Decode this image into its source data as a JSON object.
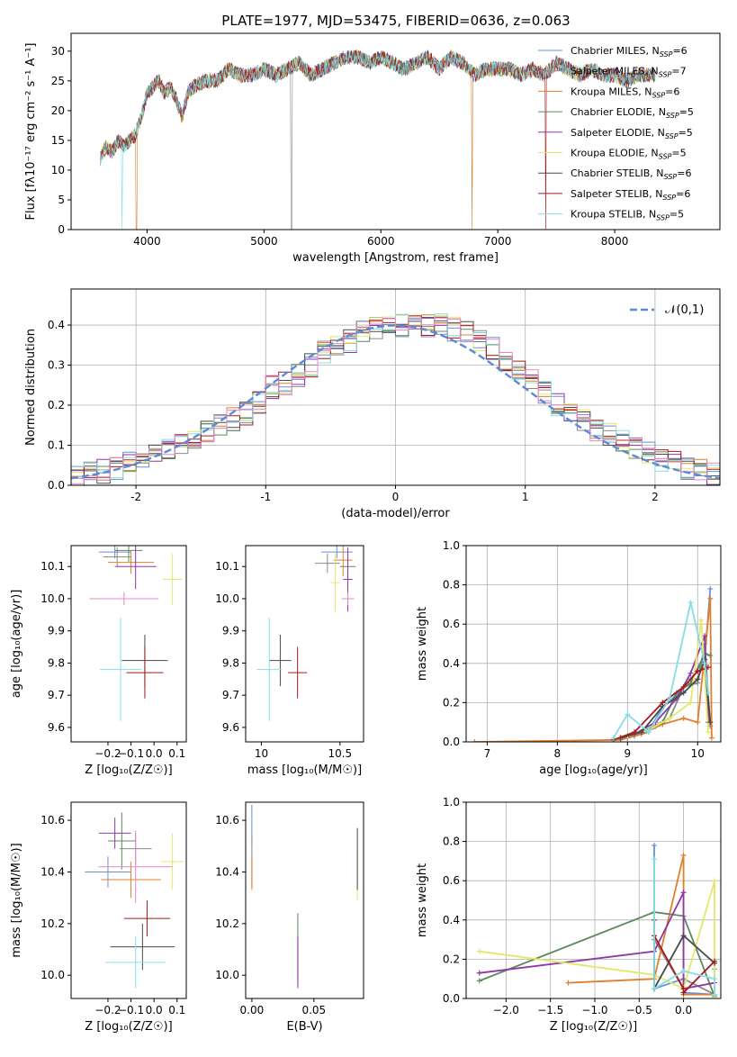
{
  "title": "PLATE=1977, MJD=53475, FIBERID=0636, z=0.063",
  "colors": {
    "series": [
      "#6a8ed8",
      "#8a8a8a",
      "#e07f2c",
      "#5c8a5c",
      "#9036a8",
      "#e3e868",
      "#4a4a4a",
      "#a8191c",
      "#86dde6"
    ],
    "pink": "#e587c4",
    "gaussian": "#5b8ad9"
  },
  "chart_data": [
    {
      "type": "line",
      "name": "spectrum",
      "title": "PLATE=1977, MJD=53475, FIBERID=0636, z=0.063",
      "xlabel": "wavelength [Angstrom, rest frame]",
      "ylabel": "Flux [fλ10⁻¹⁷ erg cm⁻² s⁻¹ A⁻¹]",
      "xlim": [
        3350,
        8900
      ],
      "ylim": [
        0,
        33
      ],
      "xticks": [
        4000,
        5000,
        6000,
        7000,
        8000
      ],
      "yticks": [
        0,
        5,
        10,
        15,
        20,
        25,
        30
      ],
      "legend_position": "top-right",
      "legend": [
        {
          "label": "Chabrier MILES, N",
          "sub": "SSP",
          "eq": "=6"
        },
        {
          "label": "Salpeter MILES, N",
          "sub": "SSP",
          "eq": "=7"
        },
        {
          "label": "Kroupa MILES, N",
          "sub": "SSP",
          "eq": "=6"
        },
        {
          "label": "Chabrier ELODIE, N",
          "sub": "SSP",
          "eq": "=5"
        },
        {
          "label": "Salpeter ELODIE, N",
          "sub": "SSP",
          "eq": "=5"
        },
        {
          "label": "Kroupa ELODIE, N",
          "sub": "SSP",
          "eq": "=5"
        },
        {
          "label": "Chabrier STELIB, N",
          "sub": "SSP",
          "eq": "=6"
        },
        {
          "label": "Salpeter STELIB, N",
          "sub": "SSP",
          "eq": "=6"
        },
        {
          "label": "Kroupa STELIB, N",
          "sub": "SSP",
          "eq": "=5"
        }
      ],
      "x": [
        3600,
        3650,
        3700,
        3750,
        3800,
        3850,
        3900,
        3950,
        4000,
        4050,
        4100,
        4150,
        4200,
        4250,
        4300,
        4350,
        4400,
        4500,
        4600,
        4700,
        4800,
        4900,
        5000,
        5100,
        5200,
        5300,
        5400,
        5500,
        5600,
        5700,
        5800,
        5900,
        6000,
        6100,
        6200,
        6300,
        6400,
        6500,
        6600,
        6700,
        6800,
        6900,
        7000,
        7100,
        7200,
        7300,
        7400,
        7500,
        7600,
        7700,
        7800,
        7900,
        8000,
        8100,
        8200,
        8300
      ],
      "y": [
        12,
        14,
        13,
        15,
        14,
        15,
        16,
        19,
        23,
        24,
        25,
        23,
        24,
        22,
        19,
        23,
        24,
        25,
        25,
        27,
        26,
        26,
        27,
        26,
        27,
        28,
        26,
        27,
        28,
        29,
        29,
        28,
        29,
        28,
        27,
        28,
        29,
        27,
        29,
        28,
        26,
        27,
        27,
        27,
        26,
        27,
        26,
        28,
        27,
        26,
        27,
        26,
        26,
        25,
        26,
        26
      ]
    },
    {
      "type": "histogram",
      "name": "residual-distribution",
      "xlabel": "(data-model)/error",
      "ylabel": "Normed distribution",
      "xlim": [
        -2.5,
        2.5
      ],
      "ylim": [
        0,
        0.49
      ],
      "xticks": [
        -2,
        -1,
        0,
        1,
        2
      ],
      "yticks": [
        0.0,
        0.1,
        0.2,
        0.3,
        0.4
      ],
      "grid": true,
      "legend_position": "top-right",
      "legend": [
        "𝒩(0,1)"
      ],
      "bin_edges": [
        -2.5,
        -2.4,
        -2.3,
        -2.2,
        -2.1,
        -2.0,
        -1.9,
        -1.8,
        -1.7,
        -1.6,
        -1.5,
        -1.4,
        -1.3,
        -1.2,
        -1.1,
        -1.0,
        -0.9,
        -0.8,
        -0.7,
        -0.6,
        -0.5,
        -0.4,
        -0.3,
        -0.2,
        -0.1,
        0.0,
        0.1,
        0.2,
        0.3,
        0.4,
        0.5,
        0.6,
        0.7,
        0.8,
        0.9,
        1.0,
        1.1,
        1.2,
        1.3,
        1.4,
        1.5,
        1.6,
        1.7,
        1.8,
        1.9,
        2.0,
        2.1,
        2.2,
        2.3,
        2.4,
        2.5
      ],
      "density": [
        0.02,
        0.03,
        0.035,
        0.04,
        0.055,
        0.065,
        0.075,
        0.085,
        0.1,
        0.11,
        0.13,
        0.15,
        0.165,
        0.18,
        0.205,
        0.245,
        0.255,
        0.275,
        0.3,
        0.33,
        0.35,
        0.36,
        0.38,
        0.39,
        0.41,
        0.4,
        0.41,
        0.4,
        0.4,
        0.39,
        0.38,
        0.36,
        0.34,
        0.31,
        0.29,
        0.26,
        0.23,
        0.2,
        0.185,
        0.165,
        0.14,
        0.125,
        0.11,
        0.09,
        0.08,
        0.065,
        0.055,
        0.045,
        0.035,
        0.03
      ]
    },
    {
      "type": "errorbar",
      "name": "age-vs-Z",
      "xlabel": "Z [log₁₀(Z/Z☉)]",
      "ylabel": "age  [log₁₀(age/yr)]",
      "xlim": [
        -0.36,
        0.14
      ],
      "ylim": [
        9.555,
        10.165
      ],
      "xticks": [
        -0.2,
        -0.1,
        0.0,
        0.1
      ],
      "xticklabels": [
        "−0.2",
        "−0.1",
        "0.0",
        "0.1"
      ],
      "yticks": [
        9.6,
        9.7,
        9.8,
        9.9,
        10.0,
        10.1
      ],
      "points": [
        {
          "x": -0.17,
          "xerr": 0.07,
          "y": 10.145,
          "yerr": 0.02
        },
        {
          "x": -0.16,
          "xerr": 0.06,
          "y": 10.13,
          "yerr": 0.03
        },
        {
          "x": -0.1,
          "xerr": 0.1,
          "y": 10.113,
          "yerr": 0.035
        },
        {
          "x": -0.11,
          "xerr": 0.06,
          "y": 10.15,
          "yerr": 0.035
        },
        {
          "x": -0.08,
          "xerr": 0.09,
          "y": 10.1,
          "yerr": 0.07
        },
        {
          "x": 0.08,
          "xerr": 0.04,
          "y": 10.06,
          "yerr": 0.08
        },
        {
          "x": -0.04,
          "xerr": 0.1,
          "y": 9.808,
          "yerr": 0.08
        },
        {
          "x": -0.04,
          "xerr": 0.08,
          "y": 9.77,
          "yerr": 0.08
        },
        {
          "x": -0.145,
          "xerr": 0.09,
          "y": 9.78,
          "yerr": 0.16
        },
        {
          "x": -0.13,
          "xerr": 0.15,
          "y": 10.0,
          "yerr": 0.02
        }
      ]
    },
    {
      "type": "errorbar",
      "name": "age-vs-mass",
      "xlabel": "mass [log₁₀(M/M☉)]",
      "ylabel": "",
      "xlim": [
        9.9,
        10.65
      ],
      "ylim": [
        9.555,
        10.165
      ],
      "xticks": [
        10.0,
        10.5
      ],
      "yticks": [
        9.6,
        9.7,
        9.8,
        9.9,
        10.0,
        10.1
      ],
      "points": [
        {
          "x": 10.48,
          "xerr": 0.1,
          "y": 10.145,
          "yerr": 0.02
        },
        {
          "x": 10.42,
          "xerr": 0.08,
          "y": 10.11,
          "yerr": 0.03
        },
        {
          "x": 10.52,
          "xerr": 0.06,
          "y": 10.12,
          "yerr": 0.05
        },
        {
          "x": 10.55,
          "xerr": 0.05,
          "y": 10.1,
          "yerr": 0.05
        },
        {
          "x": 10.55,
          "xerr": 0.03,
          "y": 10.06,
          "yerr": 0.1
        },
        {
          "x": 10.47,
          "xerr": 0.03,
          "y": 10.05,
          "yerr": 0.09
        },
        {
          "x": 10.12,
          "xerr": 0.07,
          "y": 9.808,
          "yerr": 0.08
        },
        {
          "x": 10.23,
          "xerr": 0.06,
          "y": 9.77,
          "yerr": 0.08
        },
        {
          "x": 10.05,
          "xerr": 0.08,
          "y": 9.78,
          "yerr": 0.16
        },
        {
          "x": 10.55,
          "xerr": 0.04,
          "y": 10.0,
          "yerr": 0.02
        }
      ]
    },
    {
      "type": "line",
      "name": "mass-weight-vs-age",
      "xlabel": "age  [log₁₀(age/yr)]",
      "ylabel": "mass weight",
      "xlim": [
        6.7,
        10.33
      ],
      "ylim": [
        0.0,
        1.0
      ],
      "xticks": [
        7,
        8,
        9,
        10
      ],
      "yticks": [
        0.0,
        0.2,
        0.4,
        0.6,
        0.8,
        1.0
      ],
      "grid": true,
      "series": [
        {
          "x": [
            8.8,
            9.0,
            9.3,
            9.5,
            9.7,
            9.9,
            10.1,
            10.18
          ],
          "y": [
            0.01,
            0.02,
            0.05,
            0.18,
            0.24,
            0.32,
            0.42,
            0.78
          ]
        },
        {
          "x": [
            8.9,
            9.1,
            9.4,
            9.6,
            9.8,
            10.0,
            10.1,
            10.18
          ],
          "y": [
            0.02,
            0.03,
            0.08,
            0.12,
            0.28,
            0.3,
            0.5,
            0.08
          ]
        },
        {
          "x": [
            6.82,
            8.9,
            9.2,
            9.5,
            9.8,
            10.0,
            10.18,
            10.2
          ],
          "y": [
            0.0,
            0.01,
            0.04,
            0.09,
            0.12,
            0.1,
            0.73,
            0.02
          ]
        },
        {
          "x": [
            8.9,
            9.2,
            9.5,
            9.7,
            9.9,
            10.1,
            10.18
          ],
          "y": [
            0.02,
            0.05,
            0.1,
            0.25,
            0.3,
            0.45,
            0.44
          ]
        },
        {
          "x": [
            8.9,
            9.1,
            9.4,
            9.7,
            9.9,
            10.1,
            10.15
          ],
          "y": [
            0.02,
            0.04,
            0.1,
            0.22,
            0.35,
            0.54,
            0.1
          ]
        },
        {
          "x": [
            9.0,
            9.3,
            9.6,
            9.9,
            10.05,
            10.15
          ],
          "y": [
            0.03,
            0.06,
            0.12,
            0.2,
            0.62,
            0.05
          ]
        },
        {
          "x": [
            8.9,
            9.2,
            9.5,
            9.8,
            10.0,
            10.1,
            10.18
          ],
          "y": [
            0.02,
            0.05,
            0.18,
            0.25,
            0.32,
            0.42,
            0.1
          ]
        },
        {
          "x": [
            8.8,
            9.1,
            9.5,
            9.8,
            10.0,
            10.15
          ],
          "y": [
            0.01,
            0.05,
            0.2,
            0.28,
            0.36,
            0.38
          ]
        },
        {
          "x": [
            8.8,
            9.0,
            9.3,
            9.6,
            9.9,
            10.1,
            10.15
          ],
          "y": [
            0.02,
            0.14,
            0.05,
            0.22,
            0.71,
            0.4,
            0.25
          ]
        }
      ]
    },
    {
      "type": "errorbar",
      "name": "mass-vs-Z",
      "xlabel": "Z [log₁₀(Z/Z☉)]",
      "ylabel": "mass [log₁₀(M/M☉)]",
      "xlim": [
        -0.36,
        0.14
      ],
      "ylim": [
        9.91,
        10.67
      ],
      "xticks": [
        -0.2,
        -0.1,
        0.0,
        0.1
      ],
      "xticklabels": [
        "−0.2",
        "−0.1",
        "0.0",
        "0.1"
      ],
      "yticks": [
        10.0,
        10.2,
        10.4,
        10.6
      ],
      "points": [
        {
          "x": -0.2,
          "xerr": 0.1,
          "y": 10.4,
          "yerr": 0.06
        },
        {
          "x": -0.08,
          "xerr": 0.07,
          "y": 10.49,
          "yerr": 0.06
        },
        {
          "x": -0.1,
          "xerr": 0.13,
          "y": 10.37,
          "yerr": 0.07
        },
        {
          "x": -0.14,
          "xerr": 0.06,
          "y": 10.52,
          "yerr": 0.11
        },
        {
          "x": -0.17,
          "xerr": 0.07,
          "y": 10.55,
          "yerr": 0.06
        },
        {
          "x": 0.08,
          "xerr": 0.05,
          "y": 10.44,
          "yerr": 0.11
        },
        {
          "x": -0.05,
          "xerr": 0.14,
          "y": 10.11,
          "yerr": 0.09
        },
        {
          "x": -0.03,
          "xerr": 0.1,
          "y": 10.22,
          "yerr": 0.07
        },
        {
          "x": -0.08,
          "xerr": 0.13,
          "y": 10.05,
          "yerr": 0.1
        },
        {
          "x": -0.08,
          "xerr": 0.16,
          "y": 10.42,
          "yerr": 0.14
        }
      ]
    },
    {
      "type": "errorbar",
      "name": "mass-vs-EBV",
      "xlabel": "E(B-V)",
      "ylabel": "",
      "xlim": [
        -0.005,
        0.09
      ],
      "ylim": [
        9.91,
        10.67
      ],
      "xticks": [
        0.0,
        0.05
      ],
      "xticklabels": [
        "0.00",
        "0.05"
      ],
      "yticks": [
        10.0,
        10.2,
        10.4,
        10.6
      ],
      "points": [
        {
          "x": 0.0,
          "xerr": 0.0,
          "y": 10.58,
          "yerr": 0.08
        },
        {
          "x": 0.0,
          "xerr": 0.0,
          "y": 10.44,
          "yerr": 0.1
        },
        {
          "x": 0.0,
          "xerr": 0.0,
          "y": 10.4,
          "yerr": 0.07
        },
        {
          "x": 0.037,
          "xerr": 0.0,
          "y": 10.1,
          "yerr": 0.14
        },
        {
          "x": 0.037,
          "xerr": 0.0,
          "y": 10.05,
          "yerr": 0.1
        },
        {
          "x": 0.085,
          "xerr": 0.0,
          "y": 10.39,
          "yerr": 0.1
        },
        {
          "x": 0.085,
          "xerr": 0.0,
          "y": 10.45,
          "yerr": 0.12
        }
      ]
    },
    {
      "type": "line",
      "name": "mass-weight-vs-Z",
      "xlabel": "Z [log₁₀(Z/Z☉)]",
      "ylabel": "mass weight",
      "xlim": [
        -2.45,
        0.42
      ],
      "ylim": [
        0.0,
        1.0
      ],
      "xticks": [
        -2.0,
        -1.5,
        -1.0,
        -0.5,
        0.0
      ],
      "xticklabels": [
        "−2.0",
        "−1.5",
        "−1.0",
        "−0.5",
        "0.0"
      ],
      "yticks": [
        0.0,
        0.2,
        0.4,
        0.6,
        0.8,
        1.0
      ],
      "grid": true,
      "series": [
        {
          "x": [
            -0.33,
            -0.33,
            0.0,
            0.0,
            0.35,
            0.35
          ],
          "y": [
            0.78,
            0.05,
            0.1,
            0.03,
            0.02,
            0.15
          ]
        },
        {
          "x": [
            -0.33,
            0.0,
            0.0,
            0.35
          ],
          "y": [
            0.3,
            0.05,
            0.1,
            0.02
          ]
        },
        {
          "x": [
            -1.3,
            -0.33,
            0.0,
            0.0,
            0.35
          ],
          "y": [
            0.08,
            0.1,
            0.73,
            0.02,
            0.02
          ]
        },
        {
          "x": [
            -2.3,
            -0.33,
            0.0,
            0.35
          ],
          "y": [
            0.09,
            0.44,
            0.42,
            0.01
          ]
        },
        {
          "x": [
            -2.3,
            -0.33,
            0.0,
            0.0,
            0.35
          ],
          "y": [
            0.13,
            0.24,
            0.54,
            0.05,
            0.08
          ]
        },
        {
          "x": [
            -2.3,
            -0.33,
            0.0,
            0.35,
            0.35
          ],
          "y": [
            0.24,
            0.12,
            0.05,
            0.6,
            0.0
          ]
        },
        {
          "x": [
            -0.33,
            -0.33,
            0.0,
            0.35
          ],
          "y": [
            0.4,
            0.05,
            0.32,
            0.18
          ]
        },
        {
          "x": [
            -0.33,
            0.0,
            0.0,
            0.35
          ],
          "y": [
            0.32,
            0.05,
            0.03,
            0.19
          ]
        },
        {
          "x": [
            -0.33,
            -0.33,
            0.0,
            0.35,
            0.35
          ],
          "y": [
            0.71,
            0.05,
            0.14,
            0.1,
            0.02
          ]
        }
      ]
    }
  ]
}
